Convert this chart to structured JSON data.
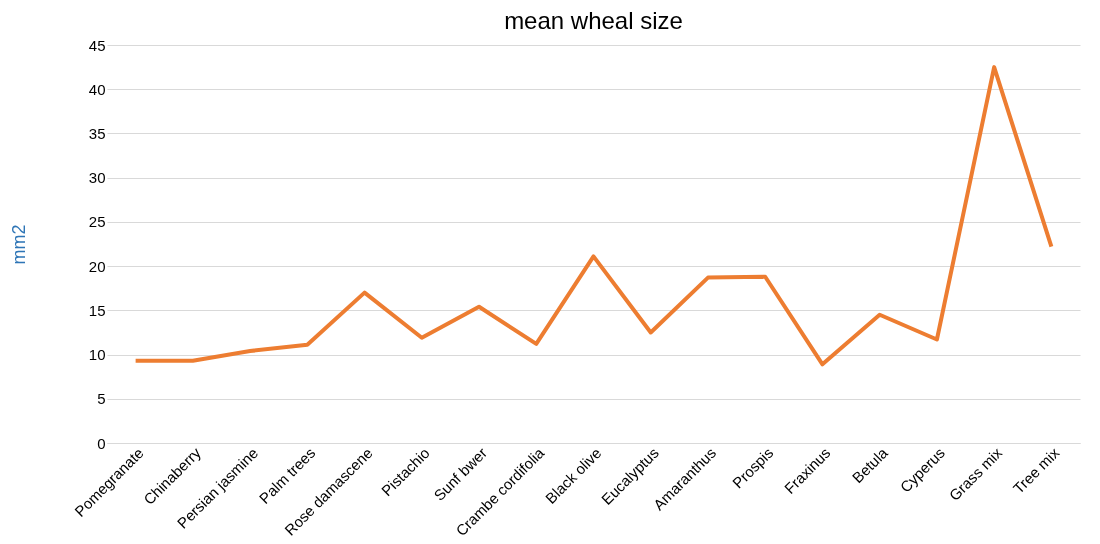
{
  "chart_data": {
    "type": "line",
    "title": "mean wheal size",
    "ylabel": "mm2",
    "categories": [
      "Pomegranate",
      "Chinaberry",
      "Persian jasmine",
      "Palm trees",
      "Rose damascene",
      "Pistachio",
      "Sunf bwer",
      "Crambe cordifolia",
      "Black olive",
      "Eucalyptus",
      "Amaranthus",
      "Prospis",
      "Fraxinus",
      "Betula",
      "Cyperus",
      "Grass mix",
      "Tree mix"
    ],
    "series": [
      {
        "color": "#ed7d31",
        "values": [
          9.3,
          9.3,
          10.4,
          11.1,
          17.0,
          11.9,
          15.4,
          11.2,
          21.1,
          12.5,
          18.7,
          18.8,
          8.9,
          14.5,
          11.7,
          42.5,
          22.2
        ]
      }
    ],
    "ylim": [
      0,
      45
    ],
    "yticks": [
      0,
      5,
      10,
      15,
      20,
      25,
      30,
      35,
      40,
      45
    ],
    "grid": "y",
    "marker": "none",
    "line_style": "solid"
  }
}
